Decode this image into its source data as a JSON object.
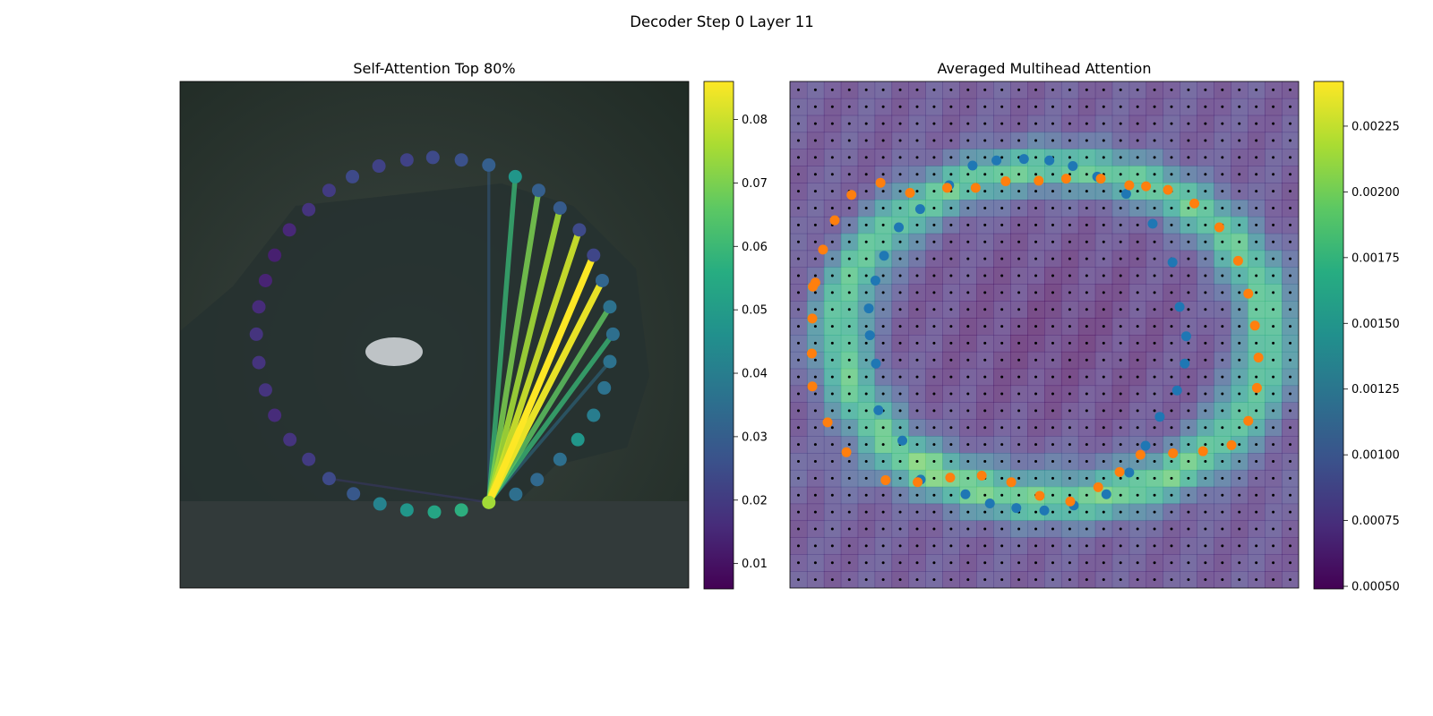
{
  "figure": {
    "suptitle": "Decoder Step 0 Layer 11"
  },
  "chart_data": [
    {
      "type": "scatter",
      "title": "Self-Attention Top 80%",
      "description_free": true,
      "colormap": "viridis",
      "colorbar": {
        "min": 0.006,
        "max": 0.086,
        "ticks": [
          0.01,
          0.02,
          0.03,
          0.04,
          0.05,
          0.06,
          0.07,
          0.08
        ],
        "tick_labels": [
          "0.01",
          "0.02",
          "0.03",
          "0.04",
          "0.05",
          "0.06",
          "0.07",
          "0.08"
        ]
      },
      "query_index": 0,
      "points": [
        {
          "x": 0.607,
          "y": 0.831,
          "v": 0.075
        },
        {
          "x": 0.66,
          "y": 0.815,
          "v": 0.035
        },
        {
          "x": 0.702,
          "y": 0.786,
          "v": 0.033
        },
        {
          "x": 0.747,
          "y": 0.746,
          "v": 0.035
        },
        {
          "x": 0.782,
          "y": 0.707,
          "v": 0.048
        },
        {
          "x": 0.813,
          "y": 0.659,
          "v": 0.04
        },
        {
          "x": 0.834,
          "y": 0.605,
          "v": 0.036
        },
        {
          "x": 0.845,
          "y": 0.553,
          "v": 0.036
        },
        {
          "x": 0.851,
          "y": 0.499,
          "v": 0.035
        },
        {
          "x": 0.845,
          "y": 0.445,
          "v": 0.036
        },
        {
          "x": 0.83,
          "y": 0.393,
          "v": 0.032
        },
        {
          "x": 0.813,
          "y": 0.343,
          "v": 0.023
        },
        {
          "x": 0.785,
          "y": 0.293,
          "v": 0.024
        },
        {
          "x": 0.747,
          "y": 0.25,
          "v": 0.029
        },
        {
          "x": 0.705,
          "y": 0.215,
          "v": 0.03
        },
        {
          "x": 0.659,
          "y": 0.188,
          "v": 0.048
        },
        {
          "x": 0.607,
          "y": 0.165,
          "v": 0.03
        },
        {
          "x": 0.553,
          "y": 0.155,
          "v": 0.026
        },
        {
          "x": 0.497,
          "y": 0.15,
          "v": 0.024
        },
        {
          "x": 0.446,
          "y": 0.155,
          "v": 0.022
        },
        {
          "x": 0.391,
          "y": 0.167,
          "v": 0.022
        },
        {
          "x": 0.339,
          "y": 0.188,
          "v": 0.024
        },
        {
          "x": 0.293,
          "y": 0.215,
          "v": 0.02
        },
        {
          "x": 0.253,
          "y": 0.253,
          "v": 0.018
        },
        {
          "x": 0.215,
          "y": 0.293,
          "v": 0.015
        },
        {
          "x": 0.186,
          "y": 0.343,
          "v": 0.013
        },
        {
          "x": 0.168,
          "y": 0.393,
          "v": 0.014
        },
        {
          "x": 0.155,
          "y": 0.445,
          "v": 0.016
        },
        {
          "x": 0.15,
          "y": 0.499,
          "v": 0.018
        },
        {
          "x": 0.155,
          "y": 0.555,
          "v": 0.018
        },
        {
          "x": 0.168,
          "y": 0.609,
          "v": 0.018
        },
        {
          "x": 0.186,
          "y": 0.659,
          "v": 0.016
        },
        {
          "x": 0.216,
          "y": 0.707,
          "v": 0.018
        },
        {
          "x": 0.253,
          "y": 0.746,
          "v": 0.02
        },
        {
          "x": 0.293,
          "y": 0.784,
          "v": 0.024
        },
        {
          "x": 0.341,
          "y": 0.814,
          "v": 0.028
        },
        {
          "x": 0.393,
          "y": 0.834,
          "v": 0.042
        },
        {
          "x": 0.446,
          "y": 0.846,
          "v": 0.048
        },
        {
          "x": 0.5,
          "y": 0.85,
          "v": 0.053
        },
        {
          "x": 0.553,
          "y": 0.846,
          "v": 0.056
        }
      ],
      "attention_links": [
        {
          "to": 8,
          "w": 0.06
        },
        {
          "to": 9,
          "w": 0.066
        },
        {
          "to": 10,
          "w": 0.084
        },
        {
          "to": 11,
          "w": 0.086
        },
        {
          "to": 12,
          "w": 0.08
        },
        {
          "to": 13,
          "w": 0.075
        },
        {
          "to": 14,
          "w": 0.07
        },
        {
          "to": 15,
          "w": 0.06
        },
        {
          "to": 7,
          "w": 0.035
        },
        {
          "to": 16,
          "w": 0.03
        },
        {
          "to": 34,
          "w": 0.02
        }
      ]
    },
    {
      "type": "heatmap",
      "title": "Averaged Multihead Attention",
      "colormap": "viridis",
      "colorbar": {
        "min": 0.00049,
        "max": 0.00242,
        "ticks": [
          0.0005,
          0.00075,
          0.001,
          0.00125,
          0.0015,
          0.00175,
          0.002,
          0.00225
        ],
        "tick_labels": [
          "0.00050",
          "0.00075",
          "0.00100",
          "0.00125",
          "0.00150",
          "0.00175",
          "0.00200",
          "0.00225"
        ]
      },
      "grid_size": 30,
      "series": [
        {
          "points": [
            {
              "x": 0.313,
              "y": 0.205
            },
            {
              "x": 0.359,
              "y": 0.166
            },
            {
              "x": 0.406,
              "y": 0.156
            },
            {
              "x": 0.46,
              "y": 0.153
            },
            {
              "x": 0.51,
              "y": 0.156
            },
            {
              "x": 0.556,
              "y": 0.167
            },
            {
              "x": 0.604,
              "y": 0.188
            },
            {
              "x": 0.661,
              "y": 0.222
            },
            {
              "x": 0.713,
              "y": 0.281
            },
            {
              "x": 0.752,
              "y": 0.357
            },
            {
              "x": 0.766,
              "y": 0.445
            },
            {
              "x": 0.779,
              "y": 0.503
            },
            {
              "x": 0.776,
              "y": 0.557
            },
            {
              "x": 0.761,
              "y": 0.61
            },
            {
              "x": 0.727,
              "y": 0.662
            },
            {
              "x": 0.699,
              "y": 0.719
            },
            {
              "x": 0.667,
              "y": 0.772
            },
            {
              "x": 0.622,
              "y": 0.815
            },
            {
              "x": 0.558,
              "y": 0.837
            },
            {
              "x": 0.5,
              "y": 0.847
            },
            {
              "x": 0.445,
              "y": 0.842
            },
            {
              "x": 0.393,
              "y": 0.833
            },
            {
              "x": 0.345,
              "y": 0.815
            },
            {
              "x": 0.257,
              "y": 0.786
            },
            {
              "x": 0.221,
              "y": 0.709
            },
            {
              "x": 0.174,
              "y": 0.649
            },
            {
              "x": 0.169,
              "y": 0.557
            },
            {
              "x": 0.157,
              "y": 0.501
            },
            {
              "x": 0.155,
              "y": 0.448
            },
            {
              "x": 0.168,
              "y": 0.393
            },
            {
              "x": 0.185,
              "y": 0.344
            },
            {
              "x": 0.214,
              "y": 0.288
            },
            {
              "x": 0.256,
              "y": 0.252
            }
          ]
        },
        {
          "points": [
            {
              "x": 0.05,
              "y": 0.397
            },
            {
              "x": 0.065,
              "y": 0.332
            },
            {
              "x": 0.088,
              "y": 0.274
            },
            {
              "x": 0.121,
              "y": 0.224
            },
            {
              "x": 0.178,
              "y": 0.2
            },
            {
              "x": 0.236,
              "y": 0.22
            },
            {
              "x": 0.309,
              "y": 0.21
            },
            {
              "x": 0.365,
              "y": 0.21
            },
            {
              "x": 0.424,
              "y": 0.197
            },
            {
              "x": 0.489,
              "y": 0.196
            },
            {
              "x": 0.543,
              "y": 0.192
            },
            {
              "x": 0.611,
              "y": 0.192
            },
            {
              "x": 0.667,
              "y": 0.205
            },
            {
              "x": 0.7,
              "y": 0.207
            },
            {
              "x": 0.743,
              "y": 0.214
            },
            {
              "x": 0.795,
              "y": 0.241
            },
            {
              "x": 0.844,
              "y": 0.288
            },
            {
              "x": 0.881,
              "y": 0.354
            },
            {
              "x": 0.901,
              "y": 0.419
            },
            {
              "x": 0.914,
              "y": 0.482
            },
            {
              "x": 0.921,
              "y": 0.545
            },
            {
              "x": 0.918,
              "y": 0.605
            },
            {
              "x": 0.901,
              "y": 0.67
            },
            {
              "x": 0.868,
              "y": 0.718
            },
            {
              "x": 0.812,
              "y": 0.73
            },
            {
              "x": 0.753,
              "y": 0.734
            },
            {
              "x": 0.689,
              "y": 0.737
            },
            {
              "x": 0.648,
              "y": 0.771
            },
            {
              "x": 0.606,
              "y": 0.801
            },
            {
              "x": 0.551,
              "y": 0.829
            },
            {
              "x": 0.491,
              "y": 0.818
            },
            {
              "x": 0.435,
              "y": 0.791
            },
            {
              "x": 0.377,
              "y": 0.778
            },
            {
              "x": 0.315,
              "y": 0.782
            },
            {
              "x": 0.251,
              "y": 0.791
            },
            {
              "x": 0.188,
              "y": 0.787
            },
            {
              "x": 0.111,
              "y": 0.732
            },
            {
              "x": 0.074,
              "y": 0.673
            },
            {
              "x": 0.044,
              "y": 0.602
            },
            {
              "x": 0.043,
              "y": 0.537
            },
            {
              "x": 0.044,
              "y": 0.468
            },
            {
              "x": 0.045,
              "y": 0.405
            }
          ]
        }
      ],
      "series_colors": [
        "#1f77b4",
        "#ff7f0e"
      ]
    }
  ]
}
